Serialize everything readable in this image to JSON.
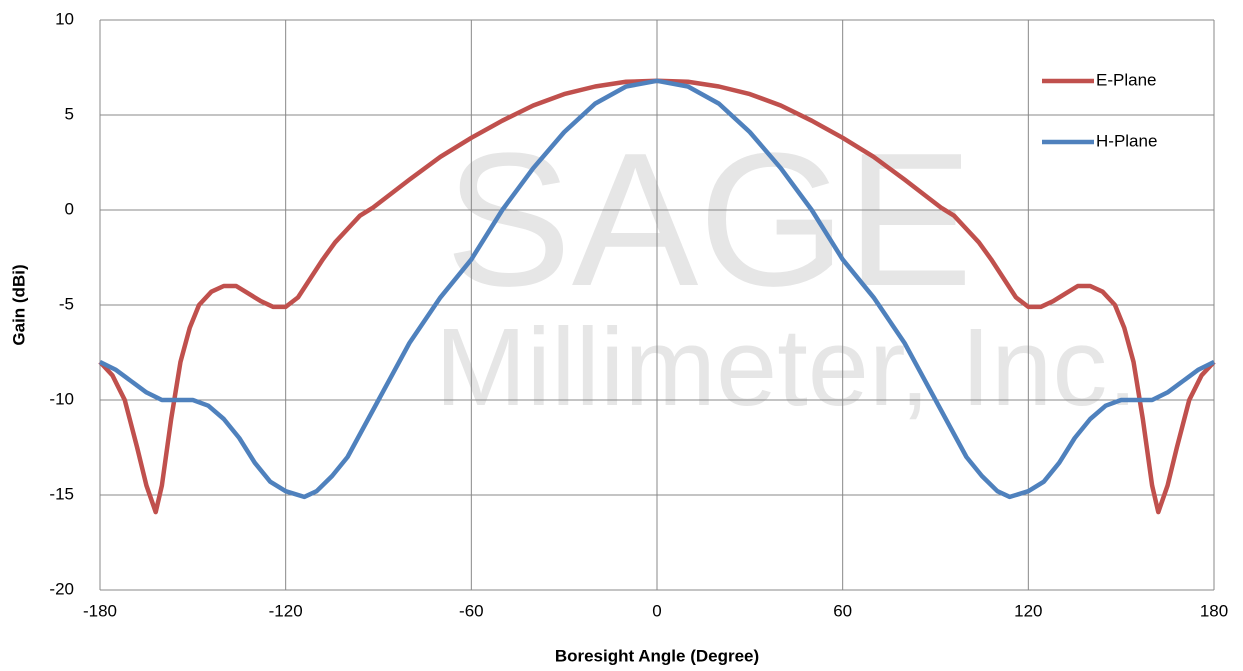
{
  "chart_data": {
    "type": "line",
    "watermark": [
      "SAGE",
      "Millimeter, Inc."
    ],
    "xlabel": "Boresight Angle (Degree)",
    "ylabel": "Gain (dBi)",
    "xlim": [
      -180,
      180
    ],
    "xticks": [
      -180,
      -120,
      -60,
      0,
      60,
      120,
      180
    ],
    "ylim": [
      -20,
      10
    ],
    "yticks": [
      -20,
      -15,
      -10,
      -5,
      0,
      5,
      10
    ],
    "grid": true,
    "legend": "upper right",
    "series": [
      {
        "name": "E-Plane",
        "color": "#c0504d",
        "x": [
          -180,
          -176,
          -172,
          -168,
          -165,
          -162,
          -160,
          -157,
          -154,
          -151,
          -148,
          -144,
          -140,
          -136,
          -132,
          -128,
          -124,
          -120,
          -116,
          -112,
          -108,
          -104,
          -100,
          -96,
          -92,
          -88,
          -80,
          -70,
          -60,
          -50,
          -40,
          -30,
          -20,
          -10,
          0,
          10,
          20,
          30,
          40,
          50,
          60,
          70,
          80,
          88,
          92,
          96,
          100,
          104,
          108,
          112,
          116,
          120,
          124,
          128,
          132,
          136,
          140,
          144,
          148,
          151,
          154,
          157,
          160,
          162,
          165,
          168,
          172,
          176,
          180
        ],
        "values": [
          -8,
          -8.7,
          -10,
          -12.5,
          -14.5,
          -15.9,
          -14.5,
          -11,
          -8,
          -6.2,
          -5,
          -4.3,
          -4,
          -4,
          -4.4,
          -4.8,
          -5.1,
          -5.1,
          -4.6,
          -3.6,
          -2.6,
          -1.7,
          -1,
          -0.3,
          0.1,
          0.6,
          1.6,
          2.8,
          3.8,
          4.7,
          5.5,
          6.1,
          6.5,
          6.75,
          6.8,
          6.75,
          6.5,
          6.1,
          5.5,
          4.7,
          3.8,
          2.8,
          1.6,
          0.6,
          0.1,
          -0.3,
          -1,
          -1.7,
          -2.6,
          -3.6,
          -4.6,
          -5.1,
          -5.1,
          -4.8,
          -4.4,
          -4,
          -4,
          -4.3,
          -5,
          -6.2,
          -8,
          -11,
          -14.5,
          -15.9,
          -14.5,
          -12.5,
          -10,
          -8.7,
          -8
        ]
      },
      {
        "name": "H-Plane",
        "color": "#4f81bd",
        "x": [
          -180,
          -175,
          -170,
          -165,
          -160,
          -155,
          -150,
          -145,
          -140,
          -135,
          -130,
          -125,
          -120,
          -114,
          -110,
          -105,
          -100,
          -95,
          -90,
          -80,
          -70,
          -60,
          -50,
          -40,
          -30,
          -20,
          -10,
          0,
          10,
          20,
          30,
          40,
          50,
          60,
          70,
          80,
          90,
          95,
          100,
          105,
          110,
          114,
          120,
          125,
          130,
          135,
          140,
          145,
          150,
          155,
          160,
          165,
          170,
          175,
          180
        ],
        "values": [
          -8,
          -8.4,
          -9,
          -9.6,
          -10,
          -10,
          -10,
          -10.3,
          -11,
          -12,
          -13.3,
          -14.3,
          -14.8,
          -15.1,
          -14.8,
          -14,
          -13,
          -11.5,
          -10,
          -7,
          -4.6,
          -2.6,
          0,
          2.2,
          4.1,
          5.6,
          6.5,
          6.8,
          6.5,
          5.6,
          4.1,
          2.2,
          0,
          -2.6,
          -4.6,
          -7,
          -10,
          -11.5,
          -13,
          -14,
          -14.8,
          -15.1,
          -14.8,
          -14.3,
          -13.3,
          -12,
          -11,
          -10.3,
          -10,
          -10,
          -10,
          -9.6,
          -9,
          -8.4,
          -8
        ]
      }
    ]
  }
}
